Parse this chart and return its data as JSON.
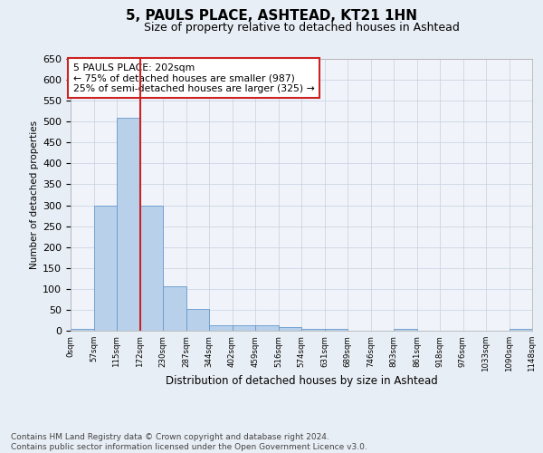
{
  "title1": "5, PAULS PLACE, ASHTEAD, KT21 1HN",
  "title2": "Size of property relative to detached houses in Ashtead",
  "xlabel": "Distribution of detached houses by size in Ashtead",
  "ylabel": "Number of detached properties",
  "bar_values": [
    5,
    300,
    510,
    300,
    107,
    53,
    12,
    13,
    12,
    8,
    5,
    5,
    0,
    0,
    5,
    0,
    0,
    0,
    0,
    5
  ],
  "bin_labels": [
    "0sqm",
    "57sqm",
    "115sqm",
    "172sqm",
    "230sqm",
    "287sqm",
    "344sqm",
    "402sqm",
    "459sqm",
    "516sqm",
    "574sqm",
    "631sqm",
    "689sqm",
    "746sqm",
    "803sqm",
    "861sqm",
    "918sqm",
    "976sqm",
    "1033sqm",
    "1090sqm",
    "1148sqm"
  ],
  "bar_color": "#b8d0ea",
  "bar_edge_color": "#6699cc",
  "vline_x": 3.0,
  "vline_color": "#cc2222",
  "annotation_text": "5 PAULS PLACE: 202sqm\n← 75% of detached houses are smaller (987)\n25% of semi-detached houses are larger (325) →",
  "ylim": [
    0,
    650
  ],
  "yticks": [
    0,
    50,
    100,
    150,
    200,
    250,
    300,
    350,
    400,
    450,
    500,
    550,
    600,
    650
  ],
  "footnote": "Contains HM Land Registry data © Crown copyright and database right 2024.\nContains public sector information licensed under the Open Government Licence v3.0.",
  "bg_color": "#e8eef5",
  "plot_bg_color": "#f0f4fa"
}
